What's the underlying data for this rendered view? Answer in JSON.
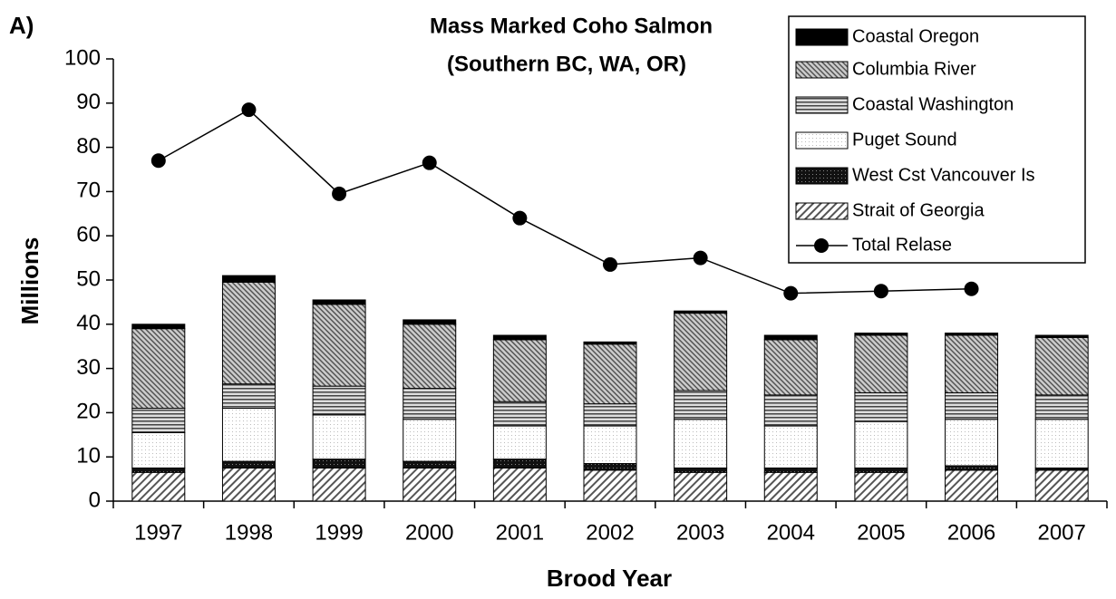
{
  "chart_data": {
    "type": "bar_line",
    "label": "A)",
    "title": "Mass Marked Coho Salmon",
    "subtitle": "(Southern BC, WA, OR)",
    "y_label": "Millions",
    "x_label": "Brood Year",
    "categories": [
      "1997",
      "1998",
      "1999",
      "2000",
      "2001",
      "2002",
      "2003",
      "2004",
      "2005",
      "2006",
      "2007"
    ],
    "series": [
      {
        "name": "Strait of Georgia",
        "values": [
          6.5,
          7.5,
          7.5,
          7.5,
          7.5,
          7,
          6.5,
          6.5,
          6.5,
          7,
          7
        ]
      },
      {
        "name": "West Cst Vancouver Is",
        "values": [
          1,
          1.5,
          2,
          1.5,
          2,
          1.5,
          1,
          1,
          1,
          1,
          0.5
        ]
      },
      {
        "name": "Puget Sound",
        "values": [
          8,
          12,
          10,
          9.5,
          7.5,
          8.5,
          11,
          9.5,
          10.5,
          10.5,
          11
        ]
      },
      {
        "name": "Coastal Washington",
        "values": [
          5.5,
          5.5,
          6.5,
          7,
          5.5,
          5,
          6.5,
          7,
          6.5,
          6,
          5.5
        ]
      },
      {
        "name": "Columbia River",
        "values": [
          18,
          23,
          18.5,
          14.5,
          14,
          13.5,
          17.5,
          12.5,
          13,
          13,
          13
        ]
      },
      {
        "name": "Coastal Oregon",
        "values": [
          1,
          1.5,
          1,
          1,
          1,
          0.5,
          0.5,
          1,
          0.5,
          0.5,
          0.5
        ]
      },
      {
        "name": "Total Relase",
        "kind": "line",
        "color": "#000000",
        "values": [
          77,
          88.5,
          69.5,
          76.5,
          64,
          53.5,
          55,
          47,
          47.5,
          48,
          null
        ]
      }
    ],
    "ylim": [
      0,
      100
    ],
    "yticks": [
      0,
      10,
      20,
      30,
      40,
      50,
      60,
      70,
      80,
      90,
      100
    ]
  }
}
